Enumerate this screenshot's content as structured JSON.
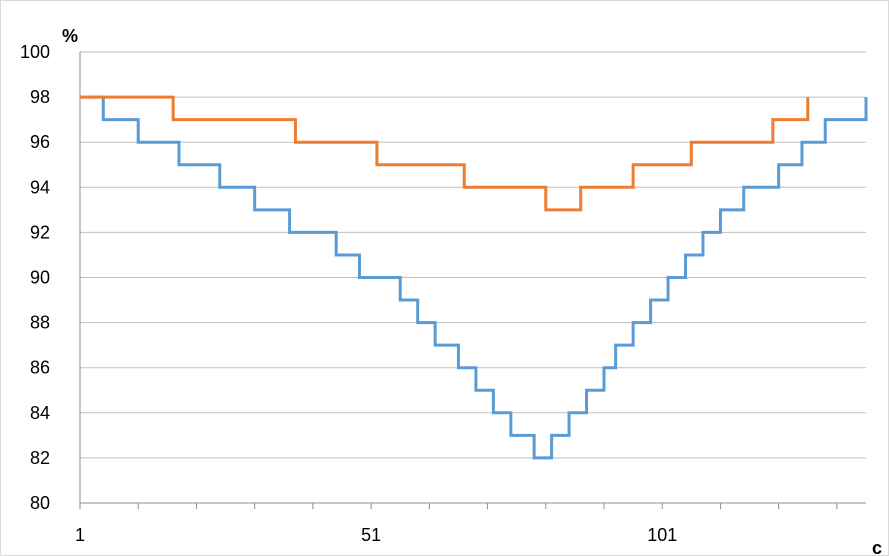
{
  "chart_data": {
    "type": "line",
    "xlabel": "c",
    "ylabel": "%",
    "ylim": [
      80,
      100
    ],
    "xlim": [
      1,
      136
    ],
    "y_ticks": [
      80,
      82,
      84,
      86,
      88,
      90,
      92,
      94,
      96,
      98,
      100
    ],
    "x_tick_labels": [
      1,
      51,
      101
    ],
    "grid": "horizontal",
    "legend": "none",
    "series": [
      {
        "color": "#5B9BD5",
        "steps": [
          [
            1,
            98
          ],
          [
            5,
            97
          ],
          [
            11,
            96
          ],
          [
            18,
            95
          ],
          [
            25,
            94
          ],
          [
            31,
            93
          ],
          [
            37,
            92
          ],
          [
            45,
            91
          ],
          [
            49,
            90
          ],
          [
            56,
            89
          ],
          [
            59,
            88
          ],
          [
            62,
            87
          ],
          [
            66,
            86
          ],
          [
            69,
            85
          ],
          [
            72,
            84
          ],
          [
            75,
            83
          ],
          [
            79,
            82
          ],
          [
            82,
            83
          ],
          [
            85,
            84
          ],
          [
            88,
            85
          ],
          [
            91,
            86
          ],
          [
            93,
            87
          ],
          [
            96,
            88
          ],
          [
            99,
            89
          ],
          [
            102,
            90
          ],
          [
            105,
            91
          ],
          [
            108,
            92
          ],
          [
            111,
            93
          ],
          [
            115,
            94
          ],
          [
            121,
            95
          ],
          [
            125,
            96
          ],
          [
            129,
            97
          ],
          [
            136,
            98
          ]
        ]
      },
      {
        "color": "#ED7D31",
        "steps": [
          [
            1,
            98
          ],
          [
            17,
            97
          ],
          [
            38,
            96
          ],
          [
            52,
            95
          ],
          [
            67,
            94
          ],
          [
            81,
            93
          ],
          [
            87,
            94
          ],
          [
            96,
            95
          ],
          [
            106,
            96
          ],
          [
            120,
            97
          ],
          [
            126,
            98
          ]
        ]
      }
    ]
  }
}
